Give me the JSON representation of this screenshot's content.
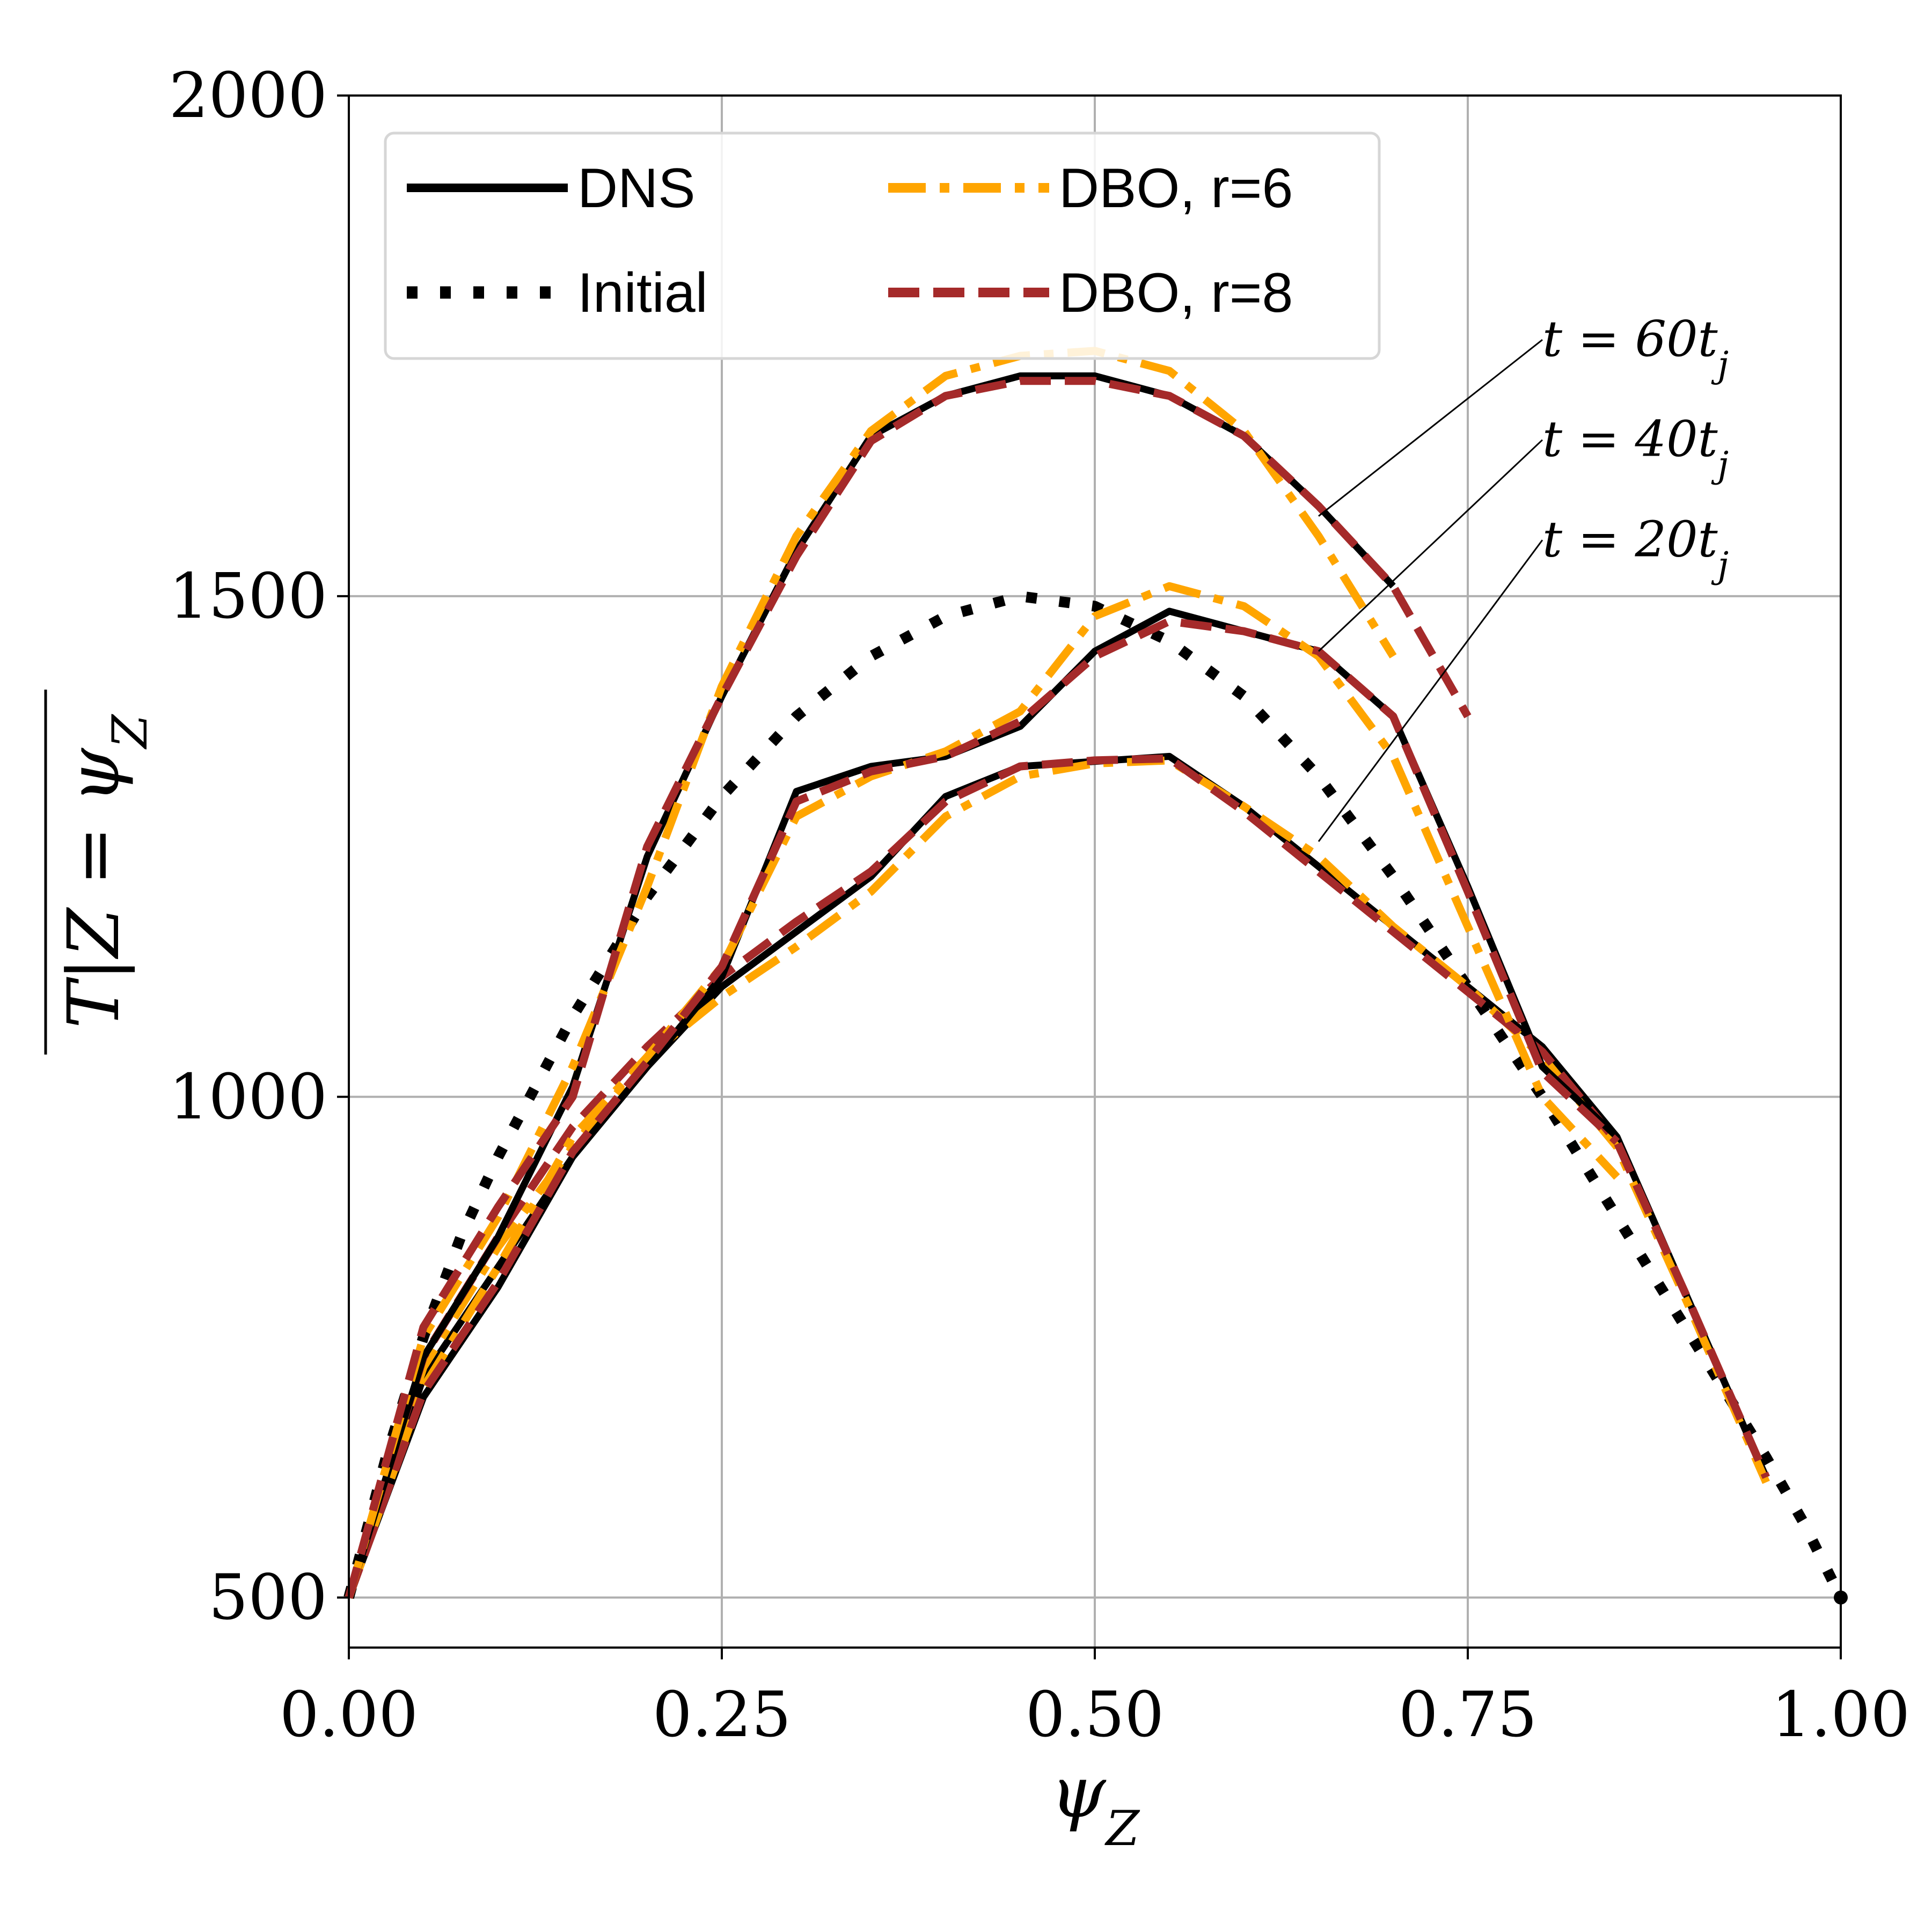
{
  "chart_data": {
    "type": "line",
    "title": "",
    "xlabel": "ψ_Z",
    "ylabel": "T|Z = ψ_Z",
    "xlim": [
      0.0,
      1.0
    ],
    "ylim": [
      450,
      2000
    ],
    "xticks": [
      "0.00",
      "0.25",
      "0.50",
      "0.75",
      "1.00"
    ],
    "yticks": [
      "500",
      "1000",
      "1500",
      "2000"
    ],
    "xtick_values": [
      0.0,
      0.25,
      0.5,
      0.75,
      1.0
    ],
    "ytick_values": [
      500,
      1000,
      1500,
      2000
    ],
    "grid": true,
    "legend": {
      "placement": "top-left",
      "entries": [
        {
          "label": "DNS",
          "style": "solid",
          "color": "#000000"
        },
        {
          "label": "DBO, r=6",
          "style": "dashdot",
          "color": "#FFA500"
        },
        {
          "label": "Initial",
          "style": "dotted",
          "color": "#000000"
        },
        {
          "label": "DBO, r=8",
          "style": "dashed",
          "color": "#A52A2A"
        }
      ]
    },
    "annotations": [
      {
        "text": "t = 60t_j",
        "target": [
          0.65,
          1580
        ],
        "text_at": [
          0.8,
          1740
        ]
      },
      {
        "text": "t = 40t_j",
        "target": [
          0.65,
          1445
        ],
        "text_at": [
          0.8,
          1640
        ]
      },
      {
        "text": "t = 20t_j",
        "target": [
          0.65,
          1255
        ],
        "text_at": [
          0.8,
          1540
        ]
      }
    ],
    "series": [
      {
        "name": "Initial",
        "style": "dotted",
        "color": "#000000",
        "x": [
          0.0,
          0.025,
          0.05,
          0.075,
          0.1,
          0.15,
          0.2,
          0.25,
          0.3,
          0.35,
          0.4,
          0.45,
          0.5,
          0.55,
          0.6,
          0.65,
          0.7,
          0.75,
          0.8,
          0.85,
          0.9,
          0.95,
          0.975,
          1.0
        ],
        "y": [
          500,
          640,
          760,
          860,
          940,
          1080,
          1200,
          1300,
          1380,
          1440,
          1480,
          1500,
          1490,
          1455,
          1400,
          1320,
          1220,
          1110,
          1000,
          880,
          760,
          640,
          575,
          500
        ]
      },
      {
        "name": "DNS t=20",
        "style": "solid",
        "color": "#000000",
        "x": [
          0.0,
          0.05,
          0.1,
          0.15,
          0.2,
          0.25,
          0.3,
          0.35,
          0.4,
          0.45,
          0.5,
          0.55,
          0.6,
          0.65,
          0.7,
          0.75,
          0.8,
          0.85,
          0.9,
          0.95
        ],
        "y": [
          500,
          720,
          830,
          940,
          1030,
          1110,
          1165,
          1220,
          1300,
          1330,
          1335,
          1340,
          1290,
          1230,
          1170,
          1110,
          1050,
          960,
          790,
          620
        ]
      },
      {
        "name": "DBO r=6 t=20",
        "style": "dashdot",
        "color": "#FFA500",
        "x": [
          0.0,
          0.05,
          0.1,
          0.15,
          0.2,
          0.25,
          0.3,
          0.35,
          0.4,
          0.45,
          0.5,
          0.55,
          0.6,
          0.65,
          0.7,
          0.75,
          0.8,
          0.85,
          0.9,
          0.95
        ],
        "y": [
          500,
          730,
          850,
          950,
          1040,
          1100,
          1150,
          1205,
          1280,
          1320,
          1333,
          1336,
          1290,
          1240,
          1170,
          1110,
          1040,
          950,
          785,
          615
        ]
      },
      {
        "name": "DBO r=8 t=20",
        "style": "dashed",
        "color": "#A52A2A",
        "x": [
          0.0,
          0.05,
          0.1,
          0.15,
          0.2,
          0.25,
          0.3,
          0.35,
          0.4,
          0.45,
          0.5,
          0.55,
          0.6,
          0.65,
          0.7,
          0.75,
          0.8,
          0.85,
          0.9,
          0.95
        ],
        "y": [
          500,
          740,
          860,
          970,
          1050,
          1120,
          1175,
          1225,
          1295,
          1330,
          1336,
          1338,
          1285,
          1225,
          1165,
          1105,
          1045,
          955,
          790,
          620
        ]
      },
      {
        "name": "DNS t=40",
        "style": "solid",
        "color": "#000000",
        "x": [
          0.0,
          0.05,
          0.1,
          0.15,
          0.2,
          0.25,
          0.3,
          0.35,
          0.4,
          0.45,
          0.5,
          0.55,
          0.6,
          0.65,
          0.7,
          0.75,
          0.8,
          0.85
        ],
        "y": [
          500,
          700,
          810,
          940,
          1030,
          1120,
          1305,
          1330,
          1340,
          1370,
          1445,
          1485,
          1465,
          1445,
          1380,
          1210,
          1030,
          960
        ]
      },
      {
        "name": "DBO r=6 t=40",
        "style": "dashdot",
        "color": "#FFA500",
        "x": [
          0.0,
          0.05,
          0.1,
          0.15,
          0.2,
          0.25,
          0.3,
          0.35,
          0.4,
          0.45,
          0.5,
          0.55,
          0.6,
          0.65,
          0.7,
          0.75,
          0.8,
          0.85
        ],
        "y": [
          500,
          710,
          830,
          960,
          1040,
          1130,
          1280,
          1320,
          1345,
          1385,
          1480,
          1510,
          1490,
          1440,
          1340,
          1170,
          1000,
          920
        ]
      },
      {
        "name": "DBO r=8 t=40",
        "style": "dashed",
        "color": "#A52A2A",
        "x": [
          0.0,
          0.05,
          0.1,
          0.15,
          0.2,
          0.25,
          0.3,
          0.35,
          0.4,
          0.45,
          0.5,
          0.55,
          0.6,
          0.65,
          0.7,
          0.75,
          0.8,
          0.85
        ],
        "y": [
          500,
          705,
          815,
          945,
          1035,
          1130,
          1295,
          1325,
          1340,
          1375,
          1440,
          1475,
          1465,
          1445,
          1380,
          1205,
          1025,
          955
        ]
      },
      {
        "name": "DNS t=60",
        "style": "solid",
        "color": "#000000",
        "x": [
          0.0,
          0.05,
          0.1,
          0.15,
          0.2,
          0.25,
          0.3,
          0.35,
          0.4,
          0.45,
          0.5,
          0.55,
          0.6,
          0.65,
          0.7
        ],
        "y": [
          500,
          740,
          860,
          1010,
          1240,
          1400,
          1545,
          1660,
          1700,
          1720,
          1720,
          1700,
          1660,
          1590,
          1510
        ]
      },
      {
        "name": "DBO r=6 t=60",
        "style": "dashdot",
        "color": "#FFA500",
        "x": [
          0.0,
          0.05,
          0.1,
          0.15,
          0.2,
          0.25,
          0.3,
          0.35,
          0.4,
          0.45,
          0.5,
          0.55,
          0.6,
          0.65,
          0.7
        ],
        "y": [
          500,
          760,
          880,
          1030,
          1210,
          1410,
          1560,
          1665,
          1720,
          1740,
          1745,
          1725,
          1665,
          1560,
          1440
        ]
      },
      {
        "name": "DBO r=8 t=60",
        "style": "dashed",
        "color": "#A52A2A",
        "x": [
          0.0,
          0.05,
          0.1,
          0.15,
          0.2,
          0.25,
          0.3,
          0.35,
          0.4,
          0.45,
          0.5,
          0.55,
          0.6,
          0.65,
          0.7,
          0.75
        ],
        "y": [
          500,
          770,
          890,
          1000,
          1250,
          1400,
          1540,
          1655,
          1700,
          1715,
          1715,
          1700,
          1660,
          1590,
          1510,
          1380
        ]
      }
    ]
  }
}
